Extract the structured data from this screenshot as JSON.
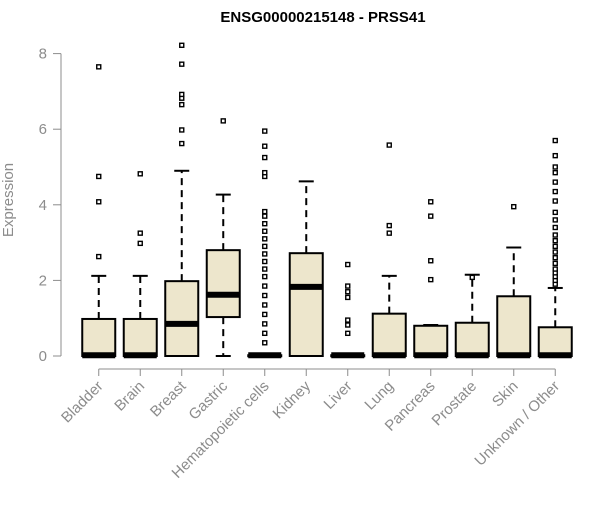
{
  "chart_data": {
    "type": "boxplot",
    "title": "ENSG00000215148 - PRSS41",
    "xlabel": "",
    "ylabel": "Expression",
    "ylim": [
      0,
      8.2
    ],
    "yticks": [
      0,
      2,
      4,
      6,
      8
    ],
    "grid": false,
    "legend": "none",
    "colors": {
      "box_fill": "#ede6cc",
      "stroke": "#000000",
      "axis": "#8c8c8c"
    },
    "categories": [
      "Bladder",
      "Brain",
      "Breast",
      "Gastric",
      "Hematopoietic cells",
      "Kidney",
      "Liver",
      "Lung",
      "Pancreas",
      "Prostate",
      "Skin",
      "Unknown / Other"
    ],
    "boxes": [
      {
        "category": "Bladder",
        "whisker_low": 0,
        "q1": 0,
        "median": 0.02,
        "q3": 0.98,
        "whisker_high": 2.12,
        "outliers": [
          2.63,
          4.08,
          4.75,
          7.65
        ]
      },
      {
        "category": "Brain",
        "whisker_low": 0,
        "q1": 0,
        "median": 0.02,
        "q3": 0.98,
        "whisker_high": 2.12,
        "outliers": [
          2.98,
          3.25,
          4.82
        ]
      },
      {
        "category": "Breast",
        "whisker_low": 0,
        "q1": 0,
        "median": 0.85,
        "q3": 1.98,
        "whisker_high": 4.9,
        "outliers": [
          5.62,
          5.98,
          6.65,
          6.82,
          6.92,
          7.72,
          8.22
        ]
      },
      {
        "category": "Gastric",
        "whisker_low": 0,
        "q1": 1.03,
        "median": 1.62,
        "q3": 2.8,
        "whisker_high": 4.27,
        "outliers": [
          6.22
        ]
      },
      {
        "category": "Hematopoietic cells",
        "whisker_low": 0,
        "q1": 0,
        "median": 0.02,
        "q3": 0.02,
        "whisker_high": 0.05,
        "outliers": [
          0.35,
          0.6,
          0.85,
          1.1,
          1.35,
          1.6,
          1.85,
          2.1,
          2.3,
          2.5,
          2.7,
          2.9,
          3.1,
          3.3,
          3.5,
          3.7,
          3.82,
          4.75,
          4.85,
          5.25,
          5.55,
          5.95
        ]
      },
      {
        "category": "Kidney",
        "whisker_low": 0,
        "q1": 0,
        "median": 1.83,
        "q3": 2.72,
        "whisker_high": 4.62,
        "outliers": []
      },
      {
        "category": "Liver",
        "whisker_low": 0,
        "q1": 0,
        "median": 0.02,
        "q3": 0.02,
        "whisker_high": 0.02,
        "outliers": [
          0.6,
          0.82,
          0.95,
          1.55,
          1.7,
          1.85,
          2.42
        ]
      },
      {
        "category": "Lung",
        "whisker_low": 0,
        "q1": 0,
        "median": 0.02,
        "q3": 1.12,
        "whisker_high": 2.12,
        "outliers": [
          3.25,
          3.45,
          5.58
        ]
      },
      {
        "category": "Pancreas",
        "whisker_low": 0,
        "q1": 0,
        "median": 0.02,
        "q3": 0.8,
        "whisker_high": 0.82,
        "outliers": [
          2.02,
          2.52,
          3.7,
          4.08
        ]
      },
      {
        "category": "Prostate",
        "whisker_low": 0,
        "q1": 0,
        "median": 0.02,
        "q3": 0.88,
        "whisker_high": 2.15,
        "outliers": [
          2.08
        ]
      },
      {
        "category": "Skin",
        "whisker_low": 0,
        "q1": 0,
        "median": 0.02,
        "q3": 1.58,
        "whisker_high": 2.87,
        "outliers": [
          3.95
        ]
      },
      {
        "category": "Unknown / Other",
        "whisker_low": 0,
        "q1": 0,
        "median": 0.02,
        "q3": 0.76,
        "whisker_high": 1.8,
        "outliers": [
          1.9,
          2.0,
          2.1,
          2.2,
          2.3,
          2.45,
          2.6,
          2.75,
          2.9,
          3.05,
          3.2,
          3.4,
          3.6,
          3.8,
          4.1,
          4.35,
          4.6,
          4.85,
          5.0,
          5.3,
          5.7
        ]
      }
    ]
  }
}
